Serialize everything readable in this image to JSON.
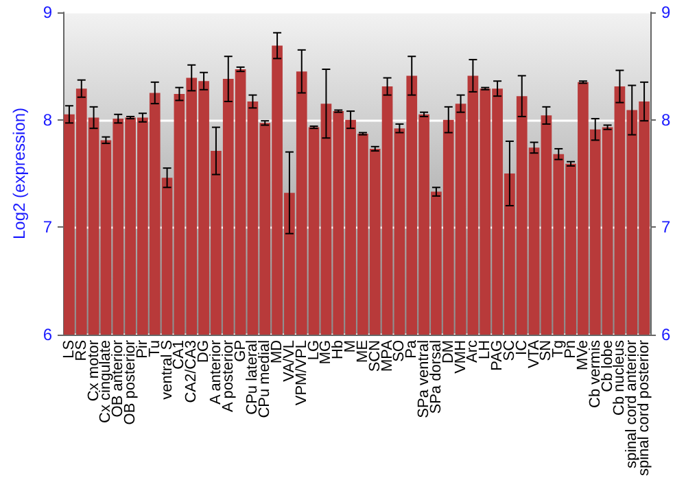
{
  "chart_data": {
    "type": "bar",
    "ylabel": "Log2 (expression)",
    "categories": [
      "LS",
      "RS",
      "Cx motor",
      "Cx cingulate",
      "OB anterior",
      "OB posterior",
      "Pir",
      "Tu",
      "ventral S",
      "CA1",
      "CA2/CA3",
      "DG",
      "A anterior",
      "A posterior",
      "GP",
      "CPu lateral",
      "CPu medial",
      "MD",
      "VA/VL",
      "VPM/VPL",
      "LG",
      "MG",
      "Hb",
      "M",
      "ME",
      "SCN",
      "MPA",
      "SO",
      "Pa",
      "SPa ventral",
      "SPa dorsal",
      "DM",
      "VMH",
      "Arc",
      "LH",
      "PAG",
      "SC",
      "IC",
      "VTA",
      "SN",
      "Tg",
      "Pn",
      "MVe",
      "Cb vermis",
      "Cb lobe",
      "Cb nucleus",
      "spinal cord anterior",
      "spinal cord posterior"
    ],
    "values": [
      8.05,
      8.29,
      8.02,
      7.81,
      8.01,
      8.02,
      8.02,
      8.25,
      7.46,
      8.24,
      8.39,
      8.36,
      7.71,
      8.38,
      8.47,
      8.17,
      7.97,
      8.69,
      7.32,
      8.45,
      7.93,
      8.15,
      8.08,
      8.0,
      7.87,
      7.73,
      8.31,
      7.92,
      8.41,
      8.05,
      7.33,
      8.0,
      8.15,
      8.41,
      8.29,
      8.29,
      7.5,
      8.22,
      7.74,
      8.04,
      7.68,
      7.59,
      8.35,
      7.91,
      7.93,
      8.31,
      8.09,
      8.17
    ],
    "errors": [
      0.08,
      0.08,
      0.1,
      0.03,
      0.04,
      0.01,
      0.04,
      0.1,
      0.09,
      0.06,
      0.12,
      0.08,
      0.22,
      0.21,
      0.02,
      0.06,
      0.02,
      0.12,
      0.38,
      0.2,
      0.01,
      0.32,
      0.01,
      0.08,
      0.01,
      0.02,
      0.08,
      0.04,
      0.18,
      0.02,
      0.04,
      0.12,
      0.08,
      0.15,
      0.01,
      0.07,
      0.3,
      0.19,
      0.05,
      0.08,
      0.05,
      0.02,
      0.01,
      0.1,
      0.02,
      0.15,
      0.23,
      0.18
    ],
    "color": "#b83a3a",
    "ylim": [
      6,
      9
    ],
    "yticks": [
      6,
      7,
      8,
      9
    ],
    "y2lim": [
      6,
      9
    ],
    "y2ticks": [
      6,
      7,
      8,
      9
    ],
    "grid": "y"
  }
}
